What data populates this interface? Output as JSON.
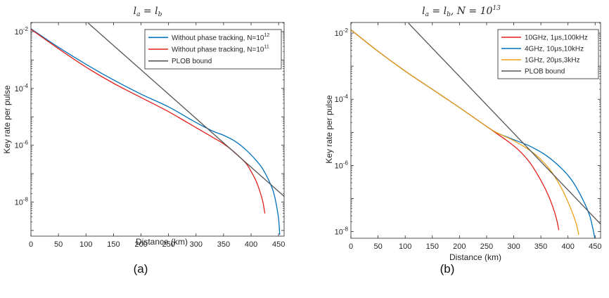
{
  "figure": {
    "label_a": "(a)",
    "label_b": "(b)"
  },
  "chart_data": [
    {
      "type": "line",
      "title": "l_a = l_b",
      "xlabel": "Distance (km)",
      "ylabel": "Key rate per pulse",
      "xlim": [
        0,
        460
      ],
      "ylim_log10": [
        -9.2,
        -1.68
      ],
      "yscale": "log",
      "xticks": [
        "0",
        "50",
        "100",
        "150",
        "200",
        "250",
        "300",
        "350",
        "400",
        "450"
      ],
      "yticks": [
        {
          "exp": -2,
          "label": "10",
          "sup": "-2"
        },
        {
          "exp": -4,
          "label": "10",
          "sup": "-4"
        },
        {
          "exp": -6,
          "label": "10",
          "sup": "-6"
        },
        {
          "exp": -8,
          "label": "10",
          "sup": "-8"
        }
      ],
      "legend_position": "top-right",
      "series": [
        {
          "name": "Without phase tracking, N=10",
          "name_sup": "12",
          "color": "#0072BD",
          "x": [
            0,
            50,
            100,
            150,
            200,
            250,
            300,
            330,
            350,
            370,
            390,
            410,
            420,
            430,
            440,
            446,
            450,
            452
          ],
          "log10y": [
            -1.9,
            -2.55,
            -3.15,
            -3.7,
            -4.2,
            -4.65,
            -5.2,
            -5.5,
            -5.65,
            -5.85,
            -6.15,
            -6.55,
            -6.8,
            -7.15,
            -7.6,
            -8.1,
            -8.6,
            -9.15
          ]
        },
        {
          "name": "Without phase tracking, N=10",
          "name_sup": "11",
          "color": "#E3211C",
          "x": [
            0,
            50,
            100,
            150,
            200,
            250,
            300,
            330,
            350,
            370,
            390,
            400,
            410,
            418,
            422,
            425
          ],
          "log10y": [
            -1.92,
            -2.6,
            -3.25,
            -3.82,
            -4.32,
            -4.82,
            -5.38,
            -5.72,
            -5.95,
            -6.25,
            -6.62,
            -6.92,
            -7.3,
            -7.75,
            -8.05,
            -8.4
          ]
        },
        {
          "name": "PLOB bound",
          "color": "#555555",
          "x": [
            104,
            460
          ],
          "log10y": [
            -1.7,
            -7.8
          ]
        }
      ]
    },
    {
      "type": "line",
      "title": "l_a = l_b, N = 10^13",
      "xlabel": "Distance (km)",
      "ylabel": "Key rate per pulse",
      "xlim": [
        0,
        460
      ],
      "ylim_log10": [
        -8.2,
        -1.68
      ],
      "yscale": "log",
      "xticks": [
        "0",
        "50",
        "100",
        "150",
        "200",
        "250",
        "300",
        "350",
        "400",
        "450"
      ],
      "yticks": [
        {
          "exp": -2,
          "label": "10",
          "sup": "-2"
        },
        {
          "exp": -4,
          "label": "10",
          "sup": "-4"
        },
        {
          "exp": -6,
          "label": "10",
          "sup": "-6"
        },
        {
          "exp": -8,
          "label": "10",
          "sup": "-8"
        }
      ],
      "legend_position": "top-right",
      "series": [
        {
          "name": "10GHz, 1μs,100kHz",
          "color": "#E3211C",
          "x": [
            0,
            50,
            100,
            150,
            200,
            250,
            270,
            290,
            310,
            330,
            350,
            365,
            375,
            380,
            383
          ],
          "log10y": [
            -1.9,
            -2.55,
            -3.15,
            -3.7,
            -4.25,
            -4.82,
            -5.05,
            -5.28,
            -5.55,
            -5.92,
            -6.45,
            -6.95,
            -7.4,
            -7.7,
            -7.95
          ]
        },
        {
          "name": "4GHz, 10μs,10kHz",
          "color": "#0072BD",
          "x": [
            0,
            50,
            100,
            150,
            200,
            250,
            270,
            300,
            330,
            360,
            390,
            410,
            430,
            440,
            446,
            450
          ],
          "log10y": [
            -1.9,
            -2.55,
            -3.15,
            -3.7,
            -4.25,
            -4.82,
            -5.02,
            -5.22,
            -5.42,
            -5.7,
            -6.12,
            -6.52,
            -7.12,
            -7.52,
            -7.92,
            -8.25
          ]
        },
        {
          "name": "1GHz, 20μs,3kHz",
          "color": "#EDA018",
          "x": [
            0,
            50,
            100,
            150,
            200,
            250,
            270,
            300,
            330,
            350,
            370,
            390,
            405,
            415,
            420
          ],
          "log10y": [
            -1.9,
            -2.55,
            -3.15,
            -3.7,
            -4.25,
            -4.82,
            -5.02,
            -5.25,
            -5.55,
            -5.82,
            -6.2,
            -6.75,
            -7.3,
            -7.75,
            -8.1
          ]
        },
        {
          "name": "PLOB bound",
          "color": "#555555",
          "x": [
            106,
            460
          ],
          "log10y": [
            -1.7,
            -7.77
          ]
        }
      ]
    }
  ]
}
